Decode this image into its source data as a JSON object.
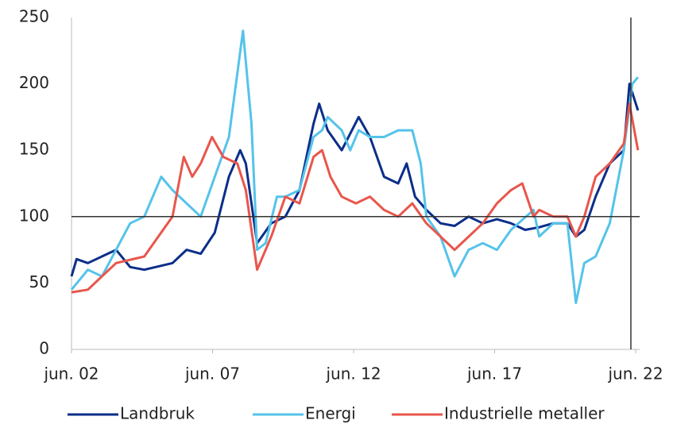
{
  "chart_data": {
    "type": "line",
    "xlim": [
      2002.42,
      2022.56
    ],
    "xticks": [
      {
        "value": 2002.42,
        "label": "jun. 02"
      },
      {
        "value": 2007.42,
        "label": "jun. 07"
      },
      {
        "value": 2012.42,
        "label": "jun. 12"
      },
      {
        "value": 2017.42,
        "label": "jun. 17"
      },
      {
        "value": 2022.42,
        "label": "jun. 22"
      }
    ],
    "ylim": [
      0,
      250
    ],
    "yticks": [
      0,
      50,
      100,
      150,
      200,
      250
    ],
    "hline": 100,
    "vline": 2022.25,
    "series": [
      {
        "name": "Landbruk",
        "color": "#0b2e8a",
        "x": [
          2002.42,
          2002.6,
          2003,
          2004,
          2004.5,
          2005,
          2006,
          2006.5,
          2007,
          2007.5,
          2008,
          2008.4,
          2008.6,
          2008.9,
          2009,
          2009.5,
          2010,
          2010.5,
          2011,
          2011.2,
          2011.5,
          2012,
          2012.6,
          2013,
          2013.5,
          2014,
          2014.3,
          2014.6,
          2015,
          2015.5,
          2016,
          2016.5,
          2017,
          2017.5,
          2018,
          2018.5,
          2019,
          2019.5,
          2020,
          2020.3,
          2020.6,
          2021,
          2021.5,
          2022,
          2022.2,
          2022.5
        ],
        "values": [
          55,
          68,
          65,
          75,
          62,
          60,
          65,
          75,
          72,
          88,
          130,
          150,
          140,
          95,
          80,
          95,
          100,
          120,
          170,
          185,
          165,
          150,
          175,
          160,
          130,
          125,
          140,
          115,
          105,
          95,
          93,
          100,
          95,
          98,
          95,
          90,
          92,
          95,
          95,
          85,
          90,
          115,
          140,
          150,
          200,
          180
        ]
      },
      {
        "name": "Energi",
        "color": "#55c3ea",
        "x": [
          2002.42,
          2003,
          2003.5,
          2004,
          2004.5,
          2005,
          2005.6,
          2006,
          2006.5,
          2007,
          2007.5,
          2008,
          2008.5,
          2008.8,
          2009,
          2009.3,
          2009.7,
          2010,
          2010.5,
          2011,
          2011.3,
          2011.5,
          2012,
          2012.3,
          2012.6,
          2013,
          2013.5,
          2014,
          2014.5,
          2014.8,
          2015,
          2015.5,
          2016,
          2016.5,
          2017,
          2017.5,
          2018,
          2018.8,
          2019,
          2019.5,
          2020,
          2020.3,
          2020.6,
          2021,
          2021.5,
          2022,
          2022.3,
          2022.5
        ],
        "values": [
          45,
          60,
          55,
          75,
          95,
          100,
          130,
          120,
          110,
          100,
          130,
          160,
          240,
          170,
          75,
          80,
          115,
          115,
          120,
          160,
          165,
          175,
          165,
          150,
          165,
          160,
          160,
          165,
          165,
          140,
          100,
          85,
          55,
          75,
          80,
          75,
          90,
          105,
          85,
          95,
          95,
          35,
          65,
          70,
          95,
          150,
          200,
          205
        ]
      },
      {
        "name": "Industrielle metaller",
        "color": "#e8564c",
        "x": [
          2002.42,
          2003,
          2003.5,
          2004,
          2005,
          2005.5,
          2006,
          2006.4,
          2006.7,
          2007,
          2007.4,
          2007.8,
          2008.3,
          2008.6,
          2009,
          2009.5,
          2010,
          2010.5,
          2011,
          2011.3,
          2011.6,
          2012,
          2012.5,
          2013,
          2013.5,
          2014,
          2014.5,
          2015,
          2015.5,
          2016,
          2016.5,
          2017,
          2017.5,
          2018,
          2018.4,
          2018.8,
          2019,
          2019.5,
          2020,
          2020.3,
          2020.6,
          2021,
          2021.5,
          2022,
          2022.2,
          2022.5
        ],
        "values": [
          43,
          45,
          55,
          65,
          70,
          85,
          100,
          145,
          130,
          140,
          160,
          145,
          140,
          120,
          60,
          85,
          115,
          110,
          145,
          150,
          130,
          115,
          110,
          115,
          105,
          100,
          110,
          95,
          85,
          75,
          85,
          95,
          110,
          120,
          125,
          100,
          105,
          100,
          100,
          85,
          100,
          130,
          140,
          155,
          185,
          150
        ]
      }
    ]
  }
}
